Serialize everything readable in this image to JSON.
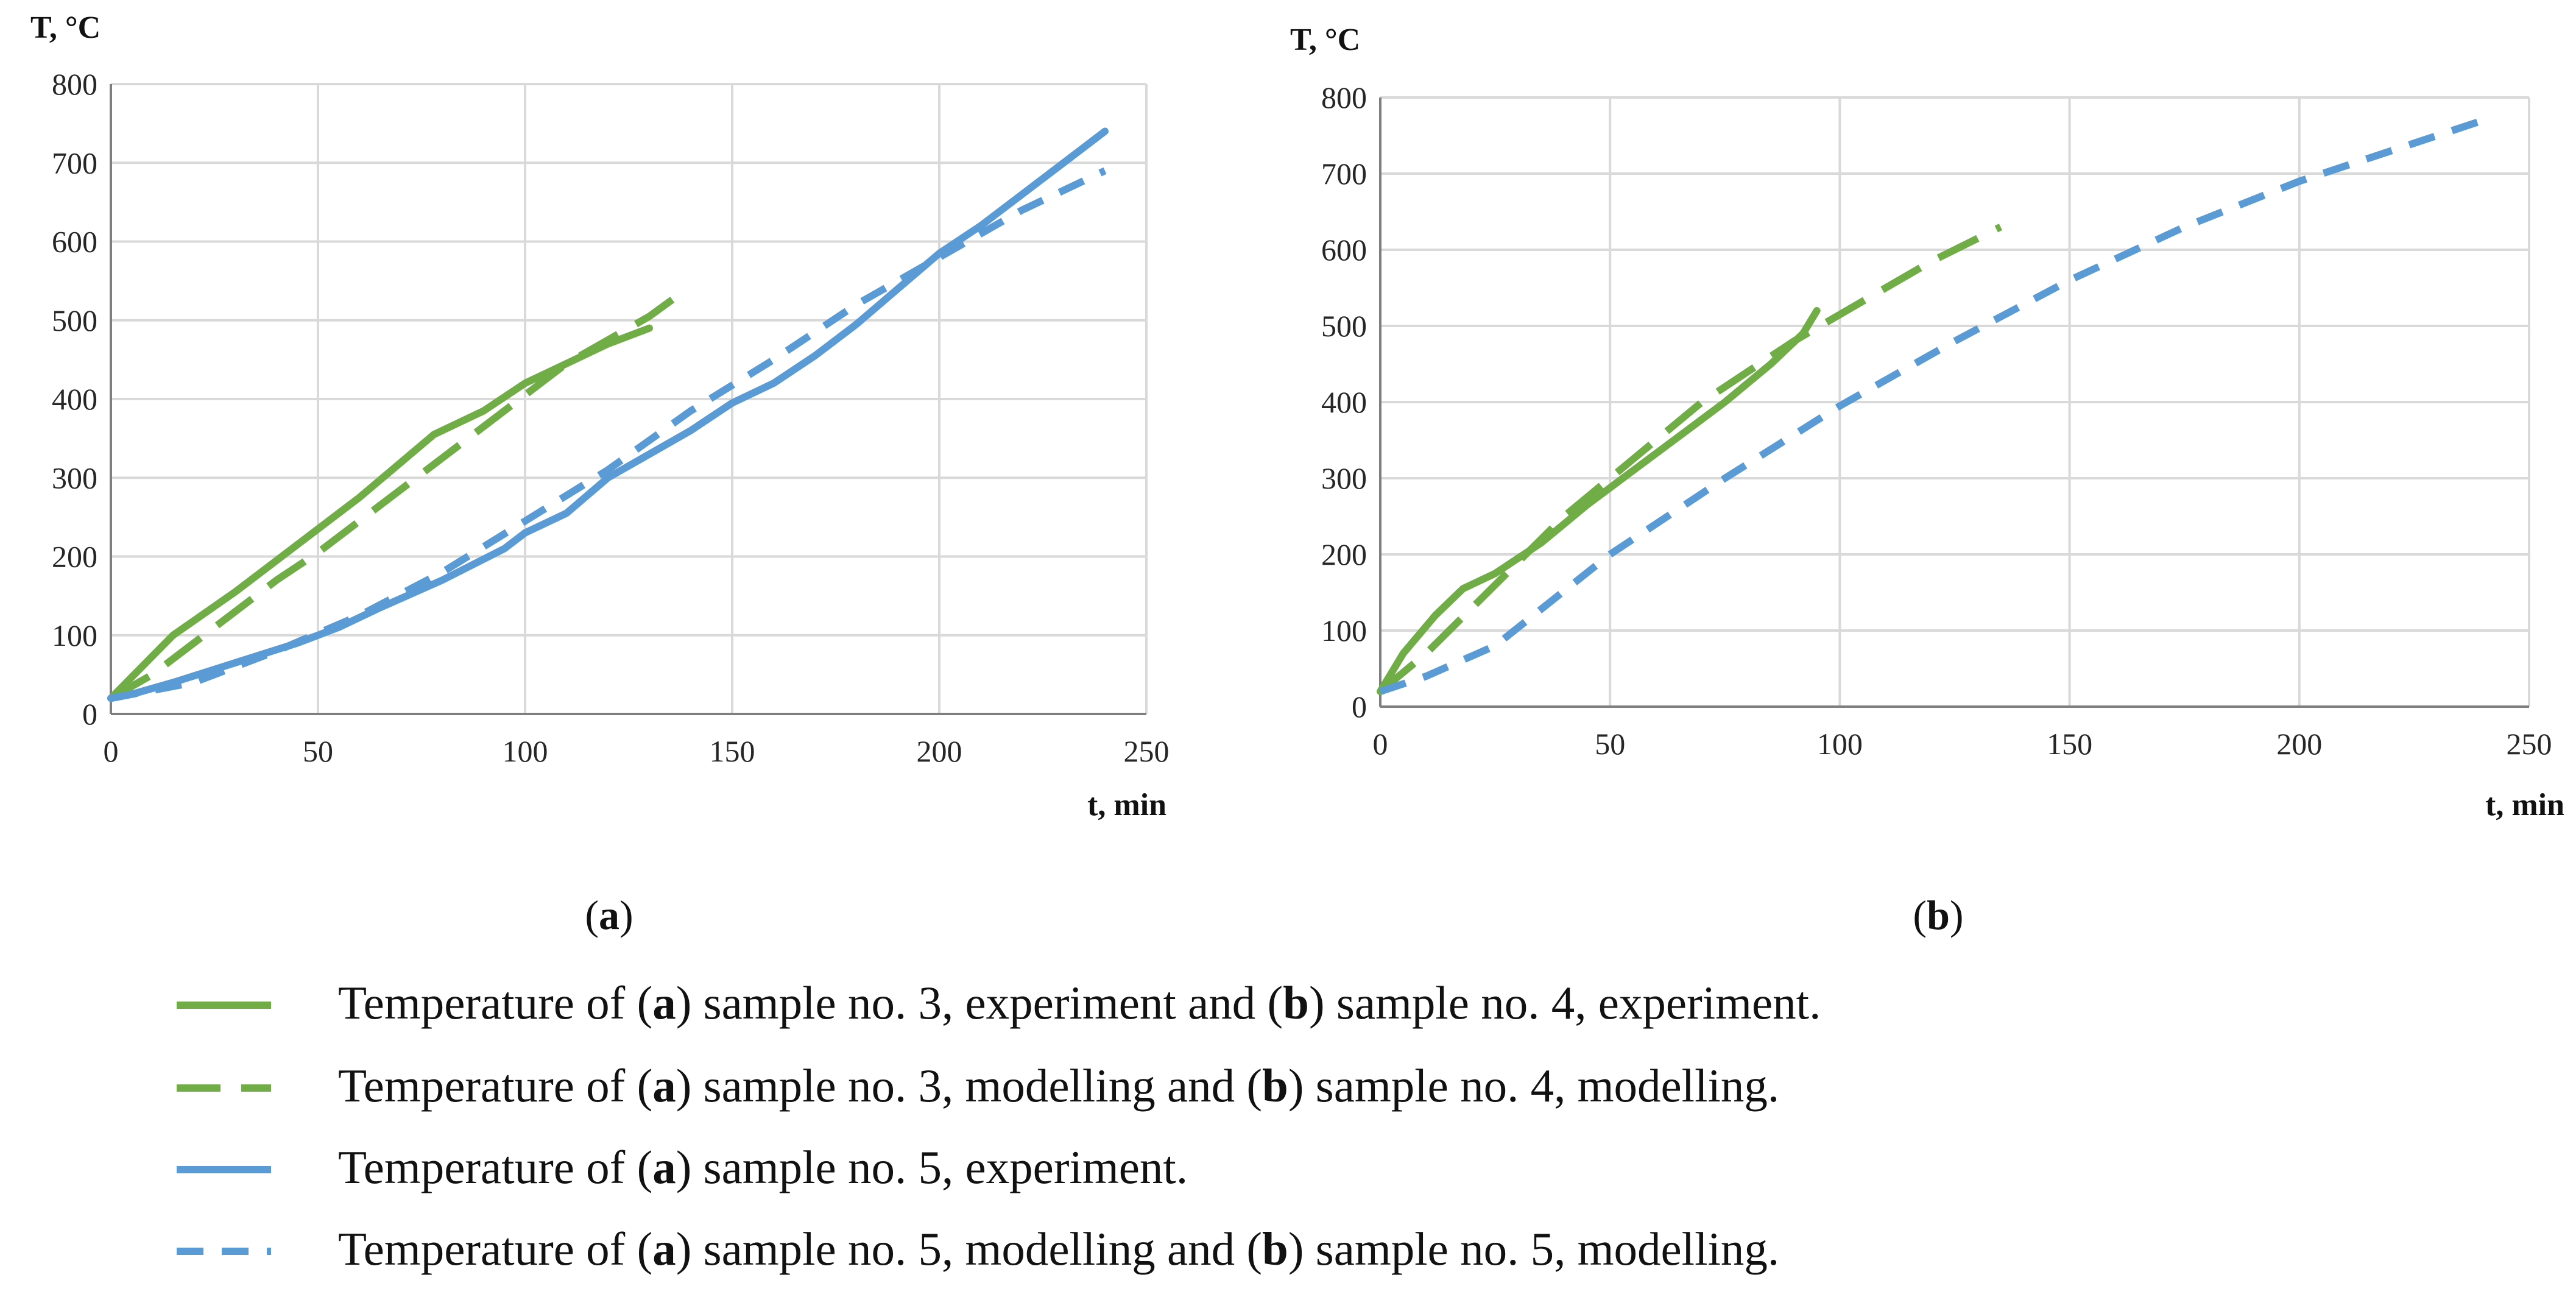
{
  "colors": {
    "green": "#70ad47",
    "blue": "#5b9bd5",
    "grid": "#d9d9d9",
    "axis": "#7f7f7f"
  },
  "chart_data": [
    {
      "type": "line",
      "panel": "a",
      "label": "(a)",
      "ylabel": "T, °C",
      "xlabel": "t, min",
      "xlim": [
        0,
        250
      ],
      "ylim": [
        0,
        800
      ],
      "xticks": [
        "0",
        "50",
        "100",
        "150",
        "200",
        "250"
      ],
      "yticks": [
        "0",
        "100",
        "200",
        "300",
        "400",
        "500",
        "600",
        "700",
        "800"
      ],
      "grid": true,
      "series": [
        {
          "name": "sample no. 3, experiment",
          "color": "green",
          "dash": "solid",
          "x": [
            0,
            15,
            30,
            45,
            60,
            78,
            90,
            100,
            110,
            120,
            130
          ],
          "y": [
            20,
            100,
            155,
            215,
            275,
            355,
            385,
            420,
            445,
            470,
            490
          ]
        },
        {
          "name": "sample no. 3, modelling",
          "color": "green",
          "dash": "long",
          "x": [
            0,
            10,
            20,
            30,
            40,
            50,
            60,
            70,
            80,
            90,
            100,
            110,
            120,
            130,
            136
          ],
          "y": [
            20,
            50,
            90,
            130,
            170,
            205,
            245,
            285,
            325,
            365,
            405,
            445,
            475,
            505,
            528
          ]
        },
        {
          "name": "sample no. 5, experiment",
          "color": "blue",
          "dash": "solid",
          "x": [
            0,
            5,
            15,
            30,
            45,
            55,
            65,
            80,
            95,
            100,
            110,
            120,
            130,
            140,
            150,
            160,
            170,
            180,
            190,
            200,
            210,
            220,
            230,
            240
          ],
          "y": [
            20,
            25,
            40,
            65,
            90,
            110,
            135,
            170,
            210,
            230,
            255,
            300,
            330,
            360,
            395,
            420,
            455,
            495,
            540,
            585,
            620,
            660,
            700,
            740
          ]
        },
        {
          "name": "sample no. 5, modelling",
          "color": "blue",
          "dash": "short",
          "x": [
            0,
            20,
            40,
            60,
            80,
            100,
            120,
            140,
            160,
            180,
            200,
            220,
            240
          ],
          "y": [
            20,
            40,
            80,
            125,
            180,
            245,
            310,
            385,
            450,
            520,
            580,
            640,
            690
          ]
        }
      ]
    },
    {
      "type": "line",
      "panel": "b",
      "label": "(b)",
      "ylabel": "T, °C",
      "xlabel": "t, min",
      "xlim": [
        0,
        250
      ],
      "ylim": [
        0,
        800
      ],
      "xticks": [
        "0",
        "50",
        "100",
        "150",
        "200",
        "250"
      ],
      "yticks": [
        "0",
        "100",
        "200",
        "300",
        "400",
        "500",
        "600",
        "700",
        "800"
      ],
      "grid": true,
      "series": [
        {
          "name": "sample no. 4, experiment",
          "color": "green",
          "dash": "solid",
          "x": [
            0,
            5,
            12,
            18,
            25,
            35,
            45,
            55,
            65,
            75,
            85,
            92,
            95
          ],
          "y": [
            20,
            70,
            120,
            155,
            175,
            215,
            265,
            310,
            355,
            400,
            450,
            490,
            520
          ]
        },
        {
          "name": "sample no. 4, modelling",
          "color": "green",
          "dash": "long",
          "x": [
            0,
            10,
            20,
            30,
            40,
            50,
            60,
            70,
            80,
            90,
            100,
            110,
            120,
            135
          ],
          "y": [
            20,
            70,
            130,
            190,
            250,
            300,
            350,
            400,
            440,
            480,
            515,
            550,
            585,
            630
          ]
        },
        {
          "name": "sample no. 5, modelling",
          "color": "blue",
          "dash": "short",
          "x": [
            0,
            10,
            25,
            50,
            75,
            100,
            125,
            150,
            175,
            200,
            225,
            240
          ],
          "y": [
            20,
            40,
            80,
            200,
            300,
            395,
            480,
            560,
            630,
            690,
            740,
            770
          ]
        }
      ]
    }
  ],
  "legend": [
    {
      "color": "green",
      "dash": "solid",
      "parts": [
        [
          "Temperature of (",
          false
        ],
        [
          "a",
          true
        ],
        [
          ") sample no. 3, experiment and (",
          false
        ],
        [
          "b",
          true
        ],
        [
          ") sample no. 4, experiment.",
          false
        ]
      ]
    },
    {
      "color": "green",
      "dash": "long",
      "parts": [
        [
          "Temperature of (",
          false
        ],
        [
          "a",
          true
        ],
        [
          ") sample no. 3, modelling and (",
          false
        ],
        [
          "b",
          true
        ],
        [
          ") sample no. 4, modelling.",
          false
        ]
      ]
    },
    {
      "color": "blue",
      "dash": "solid",
      "parts": [
        [
          "Temperature of (",
          false
        ],
        [
          "a",
          true
        ],
        [
          ") sample no. 5, experiment.",
          false
        ]
      ]
    },
    {
      "color": "blue",
      "dash": "short",
      "parts": [
        [
          "Temperature of (",
          false
        ],
        [
          "a",
          true
        ],
        [
          ") sample no. 5, modelling and (",
          false
        ],
        [
          "b",
          true
        ],
        [
          ") sample no. 5, modelling.",
          false
        ]
      ]
    }
  ]
}
